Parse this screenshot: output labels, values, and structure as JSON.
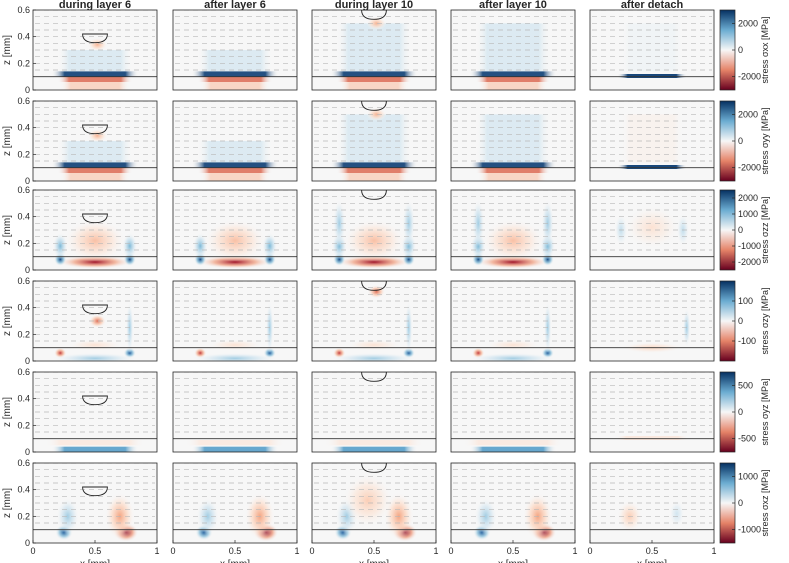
{
  "chart_data": {
    "type": "heatmap",
    "columns": [
      "during layer 6",
      "after layer 6",
      "during layer 10",
      "after layer 10",
      "after detach"
    ],
    "xlabel": "x [mm]",
    "ylabel": "z [mm]",
    "xlim": [
      0,
      1
    ],
    "ylim": [
      0,
      0.6
    ],
    "xticks": [
      "0",
      "0.5",
      "1"
    ],
    "yticks": [
      "0",
      "0.2",
      "0.4",
      "0.6"
    ],
    "substrate_top_z": 0.1,
    "colormap": {
      "negative": "#67001f",
      "zero": "#f7f7f7",
      "positive": "#053061"
    },
    "rows": [
      {
        "component": "xx",
        "label": "stress σxx [MPa]",
        "range": [
          -3000,
          3000
        ],
        "cbar_ticks": [
          2000,
          0,
          -2000
        ]
      },
      {
        "component": "yy",
        "label": "stress σyy [MPa]",
        "range": [
          -3000,
          3000
        ],
        "cbar_ticks": [
          2000,
          0,
          -2000
        ]
      },
      {
        "component": "zz",
        "label": "stress σzz [MPa]",
        "range": [
          -2500,
          2500
        ],
        "cbar_ticks": [
          2000,
          1000,
          0,
          -1000,
          -2000
        ]
      },
      {
        "component": "zy",
        "label": "stress σzy [MPa]",
        "range": [
          -200,
          200
        ],
        "cbar_ticks": [
          100,
          0,
          -100
        ]
      },
      {
        "component": "yz",
        "label": "stress σyz [MPa]",
        "range": [
          -750,
          750
        ],
        "cbar_ticks": [
          500,
          0,
          -500
        ]
      },
      {
        "component": "xz",
        "label": "stress σxz [MPa]",
        "range": [
          -1500,
          1500
        ],
        "cbar_ticks": [
          1000,
          0,
          -1000
        ]
      }
    ],
    "melt_pool": [
      {
        "column": 0,
        "center_x": 0.5,
        "top_z": 0.42,
        "depth_z": 0.065
      },
      {
        "column": 2,
        "center_x": 0.5,
        "top_z": 0.6,
        "depth_z": 0.07
      }
    ]
  }
}
